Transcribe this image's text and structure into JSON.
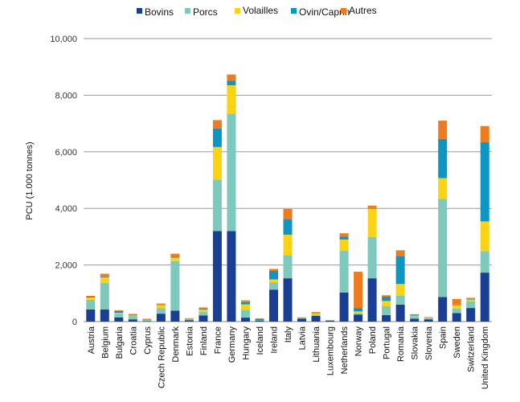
{
  "chart_data": {
    "type": "bar",
    "stacked": true,
    "title": "",
    "xlabel": "",
    "ylabel": "PCU (1.000 tonnes)",
    "ylim": [
      0,
      10000
    ],
    "yticks": [
      0,
      2000,
      4000,
      6000,
      8000,
      10000
    ],
    "ytick_labels": [
      "0",
      "2,000",
      "4,000",
      "6,000",
      "8,000",
      "10,000"
    ],
    "grid": true,
    "legend_position": "top",
    "categories": [
      "Austria",
      "Belgium",
      "Bulgaria",
      "Croatia",
      "Cyprus",
      "Czech Republic",
      "Denmark",
      "Estonia",
      "Finland",
      "France",
      "Germany",
      "Hungary",
      "Iceland",
      "Ireland",
      "Italy",
      "Latvia",
      "Lithuania",
      "Luxembourg",
      "Netherlands",
      "Norway",
      "Poland",
      "Portugal",
      "Romania",
      "Slovakia",
      "Slovenia",
      "Spain",
      "Sweden",
      "Switzerland",
      "United Kingdom"
    ],
    "series": [
      {
        "name": "Bovins",
        "color": "#1a3e93",
        "values": [
          430,
          430,
          150,
          80,
          20,
          280,
          390,
          50,
          220,
          3200,
          3200,
          140,
          30,
          1130,
          1530,
          100,
          200,
          40,
          1030,
          250,
          1530,
          230,
          600,
          100,
          80,
          870,
          300,
          480,
          1730
        ]
      },
      {
        "name": "Porcs",
        "color": "#7dc9bb",
        "values": [
          340,
          940,
          130,
          120,
          40,
          200,
          1750,
          40,
          120,
          1820,
          4150,
          270,
          10,
          260,
          820,
          20,
          50,
          0,
          1480,
          50,
          1460,
          310,
          320,
          80,
          40,
          3470,
          160,
          240,
          760
        ]
      },
      {
        "name": "Volailles",
        "color": "#fad314",
        "values": [
          80,
          190,
          30,
          20,
          10,
          110,
          120,
          10,
          80,
          1150,
          1000,
          200,
          0,
          100,
          720,
          10,
          50,
          0,
          390,
          60,
          1000,
          190,
          410,
          30,
          20,
          730,
          120,
          60,
          1050
        ]
      },
      {
        "name": "Ovin/Caprin",
        "color": "#0d95c4",
        "values": [
          30,
          20,
          60,
          30,
          20,
          10,
          30,
          10,
          20,
          650,
          160,
          80,
          60,
          300,
          550,
          10,
          20,
          0,
          100,
          120,
          20,
          150,
          990,
          30,
          10,
          1380,
          20,
          20,
          2800
        ]
      },
      {
        "name": "Autres",
        "color": "#ee7c1f",
        "values": [
          30,
          110,
          30,
          20,
          10,
          40,
          110,
          10,
          60,
          300,
          220,
          60,
          10,
          70,
          360,
          10,
          20,
          0,
          120,
          1280,
          90,
          50,
          200,
          20,
          10,
          650,
          200,
          40,
          570
        ]
      }
    ]
  }
}
